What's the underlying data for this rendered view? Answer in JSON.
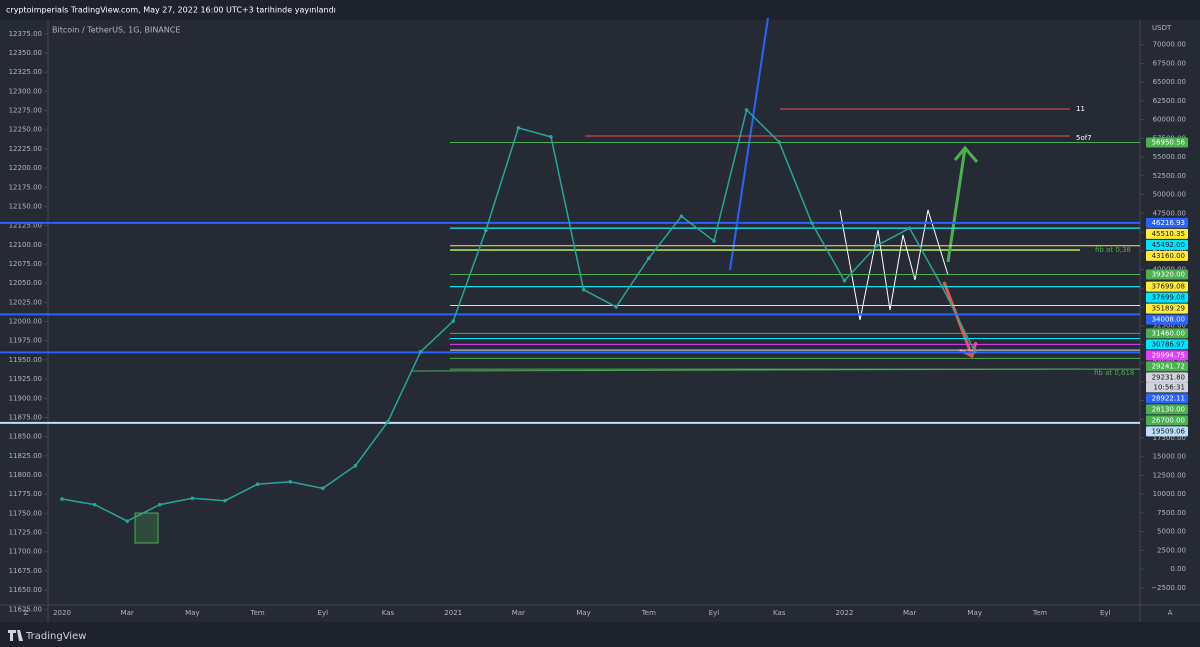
{
  "header": "cryptoimperials TradingView.com, May 27, 2022 16:00 UTC+3 tarihinde yayınlandı",
  "footer": "TradingView",
  "chart_data": {
    "type": "line",
    "title": "Bitcoin / TetherUS, 1G, BINANCE",
    "y_unit": "USDT",
    "corner_left": "Z",
    "corner_right": "A",
    "categories": [
      "2020",
      null,
      "Mar",
      null,
      "May",
      null,
      "Tem",
      null,
      "Eyl",
      null,
      "Kas",
      null,
      "2021",
      null,
      "Mar",
      null,
      "May",
      null,
      "Tem",
      null,
      "Eyl",
      null,
      "Kas",
      null,
      "2022",
      null,
      "Mar",
      null,
      "May",
      null,
      "Tem",
      null,
      "Eyl"
    ],
    "series": [
      {
        "name": "BTCUSDT",
        "color": "#26a69a",
        "values": [
          9350,
          8600,
          6400,
          8600,
          9450,
          9130,
          11330,
          11650,
          10780,
          13800,
          19700,
          29000,
          33100,
          45200,
          58900,
          57700,
          37300,
          35000,
          41500,
          47100,
          43800,
          61300,
          57000,
          46200,
          38500,
          43200,
          45500,
          37700,
          29000,
          null,
          null,
          null,
          null
        ]
      }
    ],
    "ylim": [
      -6800,
      73300
    ],
    "yticks": [
      {
        "value": 70000,
        "label": "70000.00"
      },
      {
        "value": 67500,
        "label": "67500.00"
      },
      {
        "value": 65000,
        "label": "65000.00"
      },
      {
        "value": 62500,
        "label": "62500.00"
      },
      {
        "value": 60000,
        "label": "60000.00"
      },
      {
        "value": 57500,
        "label": "57500.00"
      },
      {
        "value": 55000,
        "label": "55000.00"
      },
      {
        "value": 52500,
        "label": "52500.00"
      },
      {
        "value": 50000,
        "label": "50000.00"
      },
      {
        "value": 47500,
        "label": "47500.00"
      },
      {
        "value": 45000,
        "label": "45000.00"
      },
      {
        "value": 42500,
        "label": "42500.00"
      },
      {
        "value": 40000,
        "label": "40000.00"
      },
      {
        "value": 37500,
        "label": "37500.00"
      },
      {
        "value": 35000,
        "label": "35000.00"
      },
      {
        "value": 32500,
        "label": "32500.00"
      },
      {
        "value": 30000,
        "label": "30000.00"
      },
      {
        "value": 27500,
        "label": "27500.00"
      },
      {
        "value": 25000,
        "label": "25000.00"
      },
      {
        "value": 22500,
        "label": "22500.00"
      },
      {
        "value": 20000,
        "label": "20000.00"
      },
      {
        "value": 17500,
        "label": "17500.00"
      },
      {
        "value": 15000,
        "label": "15000.00"
      },
      {
        "value": 12500,
        "label": "12500.00"
      },
      {
        "value": 10000,
        "label": "10000.00"
      },
      {
        "value": 7500,
        "label": "7500.00"
      },
      {
        "value": 5000,
        "label": "5000.00"
      },
      {
        "value": 2500,
        "label": "2500.00"
      },
      {
        "value": 0,
        "label": "0.00"
      },
      {
        "value": -2500,
        "label": "−2500.00"
      }
    ],
    "y2lim": [
      11611,
      12393
    ],
    "y2ticks": [
      {
        "value": 12375,
        "label": "12375.00"
      },
      {
        "value": 12350,
        "label": "12350.00"
      },
      {
        "value": 12325,
        "label": "12325.00"
      },
      {
        "value": 12300,
        "label": "12300.00"
      },
      {
        "value": 12275,
        "label": "12275.00"
      },
      {
        "value": 12250,
        "label": "12250.00"
      },
      {
        "value": 12225,
        "label": "12225.00"
      },
      {
        "value": 12200,
        "label": "12200.00"
      },
      {
        "value": 12175,
        "label": "12175.00"
      },
      {
        "value": 12150,
        "label": "12150.00"
      },
      {
        "value": 12125,
        "label": "12125.00"
      },
      {
        "value": 12100,
        "label": "12100.00"
      },
      {
        "value": 12075,
        "label": "12075.00"
      },
      {
        "value": 12050,
        "label": "12050.00"
      },
      {
        "value": 12025,
        "label": "12025.00"
      },
      {
        "value": 12000,
        "label": "12000.00"
      },
      {
        "value": 11975,
        "label": "11975.00"
      },
      {
        "value": 11950,
        "label": "11950.00"
      },
      {
        "value": 11925,
        "label": "11925.00"
      },
      {
        "value": 11900,
        "label": "11900.00"
      },
      {
        "value": 11875,
        "label": "11875.00"
      },
      {
        "value": 11850,
        "label": "11850.00"
      },
      {
        "value": 11825,
        "label": "11825.00"
      },
      {
        "value": 11800,
        "label": "11800.00"
      },
      {
        "value": 11775,
        "label": "11775.00"
      },
      {
        "value": 11750,
        "label": "11750.00"
      },
      {
        "value": 11725,
        "label": "11725.00"
      },
      {
        "value": 11700,
        "label": "11700.00"
      },
      {
        "value": 11675,
        "label": "11675.00"
      },
      {
        "value": 11650,
        "label": "11650.00"
      },
      {
        "value": 11625,
        "label": "11625.00"
      }
    ],
    "levels": [
      {
        "value": 56950.56,
        "label": "56950.56",
        "color": "#4caf50"
      },
      {
        "value": 46216.93,
        "label": "46216.93",
        "color": "#2962ff"
      },
      {
        "value": 45510.35,
        "label": "45510.35",
        "color": "#ffeb3b"
      },
      {
        "value": 45492,
        "label": "45492.00",
        "color": "#00e5ff"
      },
      {
        "value": 43160,
        "label": "43160.00",
        "color": "#ffeb3b"
      },
      {
        "value": 39320,
        "label": "39320.00",
        "color": "#4caf50"
      },
      {
        "value": 37699.08,
        "label": "37699.08",
        "color": "#ffeb3b"
      },
      {
        "value": 37699.08,
        "label": "37699.08",
        "color": "#00e5ff"
      },
      {
        "value": 35189.29,
        "label": "35189.29",
        "color": "#ffeb3b"
      },
      {
        "value": 34008,
        "label": "34008.00",
        "color": "#2962ff"
      },
      {
        "value": 31460,
        "label": "31460.00",
        "color": "#4caf50"
      },
      {
        "value": 30786.97,
        "label": "30786.97",
        "color": "#00e5ff"
      },
      {
        "value": 29994.75,
        "label": "29994.75",
        "color": "#e040fb"
      },
      {
        "value": 29241.72,
        "label": "29241.72",
        "color": "#4caf50"
      },
      {
        "value": 29231.8,
        "label": "29231.80",
        "color": "#d1d4dc"
      },
      {
        "value": 28922.11,
        "label": "28922.11",
        "color": "#2962ff"
      },
      {
        "value": 28130,
        "label": "28130.00",
        "color": "#4caf50"
      },
      {
        "value": 26700,
        "label": "26700.00",
        "color": "#4caf50"
      },
      {
        "value": 19509.06,
        "label": "19509.06",
        "color": "#bbdefb"
      }
    ],
    "countdown": "10:56:31",
    "annotations": [
      "11",
      "5of7",
      "fib at 0,38",
      "fib at 0,618"
    ]
  }
}
